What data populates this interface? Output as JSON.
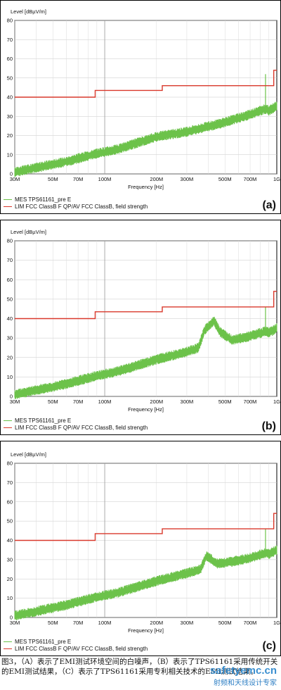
{
  "chart_data": [
    {
      "type": "line",
      "panel_label": "(a)",
      "ylabel": "Level [dBµV/m]",
      "xlabel": "Frequency [Hz]",
      "x_scale": "log",
      "xlim": [
        30000000,
        1000000000
      ],
      "ylim": [
        0,
        80
      ],
      "y_ticks": [
        0,
        10,
        20,
        30,
        40,
        50,
        60,
        70,
        80
      ],
      "x_tick_labels": [
        "30M",
        "50M",
        "70M",
        "100M",
        "200M",
        "300M",
        "500M",
        "700M",
        "1G"
      ],
      "x_tick_values": [
        30000000,
        50000000,
        70000000,
        100000000,
        200000000,
        300000000,
        500000000,
        700000000,
        1000000000
      ],
      "grid": true,
      "series": [
        {
          "name": "MES  TPS61161_pre E",
          "color": "#6cc24a",
          "x": [
            30000000,
            60000000,
            88000000,
            120000000,
            200000000,
            300000000,
            500000000,
            700000000,
            860000000,
            900000000,
            1000000000
          ],
          "y": [
            1,
            6.5,
            10.5,
            13,
            19.5,
            22,
            27,
            31,
            34,
            33,
            35.5
          ]
        },
        {
          "name": "LIM  FCC ClassB F QP/AV    FCC ClassB, field strength",
          "color": "#d9382b",
          "x": [
            30000000,
            88000000,
            88000000,
            216000000,
            216000000,
            960000000,
            960000000,
            1000000000
          ],
          "y": [
            40,
            40,
            43.5,
            43.5,
            46,
            46,
            54,
            54
          ]
        }
      ],
      "annotations": [
        {
          "type": "spike",
          "x": 860000000,
          "y": 52
        }
      ]
    },
    {
      "type": "line",
      "panel_label": "(b)",
      "ylabel": "Level [dBµV/m]",
      "xlabel": "Frequency [Hz]",
      "x_scale": "log",
      "xlim": [
        30000000,
        1000000000
      ],
      "ylim": [
        0,
        80
      ],
      "y_ticks": [
        0,
        10,
        20,
        30,
        40,
        50,
        60,
        70,
        80
      ],
      "x_tick_labels": [
        "30M",
        "50M",
        "70M",
        "100M",
        "200M",
        "300M",
        "500M",
        "700M",
        "1G"
      ],
      "x_tick_values": [
        30000000,
        50000000,
        70000000,
        100000000,
        200000000,
        300000000,
        500000000,
        700000000,
        1000000000
      ],
      "grid": true,
      "series": [
        {
          "name": "MES  TPS61161_pre E",
          "color": "#6cc24a",
          "x": [
            30000000,
            60000000,
            88000000,
            120000000,
            200000000,
            300000000,
            350000000,
            380000000,
            430000000,
            470000000,
            550000000,
            700000000,
            860000000,
            900000000,
            1000000000
          ],
          "y": [
            1,
            6.5,
            10.5,
            13,
            19,
            23,
            25,
            34,
            39,
            33,
            29,
            31,
            33.5,
            33,
            35
          ]
        },
        {
          "name": "LIM  FCC ClassB F QP/AV    FCC ClassB, field strength",
          "color": "#d9382b",
          "x": [
            30000000,
            88000000,
            88000000,
            216000000,
            216000000,
            960000000,
            960000000,
            1000000000
          ],
          "y": [
            40,
            40,
            43.5,
            43.5,
            46,
            46,
            54,
            54
          ]
        }
      ],
      "annotations": [
        {
          "type": "spike",
          "x": 860000000,
          "y": 46
        }
      ]
    },
    {
      "type": "line",
      "panel_label": "(c)",
      "ylabel": "Level [dBµV/m]",
      "xlabel": "Frequency [Hz]",
      "x_scale": "log",
      "xlim": [
        30000000,
        1000000000
      ],
      "ylim": [
        0,
        80
      ],
      "y_ticks": [
        0,
        10,
        20,
        30,
        40,
        50,
        60,
        70,
        80
      ],
      "x_tick_labels": [
        "30M",
        "50M",
        "70M",
        "100M",
        "200M",
        "300M",
        "500M",
        "700M",
        "1G"
      ],
      "x_tick_values": [
        30000000,
        50000000,
        70000000,
        100000000,
        200000000,
        300000000,
        500000000,
        700000000,
        1000000000
      ],
      "grid": true,
      "series": [
        {
          "name": "MES  TPS61161_pre E",
          "color": "#6cc24a",
          "x": [
            30000000,
            60000000,
            88000000,
            120000000,
            200000000,
            300000000,
            360000000,
            390000000,
            420000000,
            450000000,
            550000000,
            700000000,
            860000000,
            900000000,
            1000000000
          ],
          "y": [
            1,
            6.5,
            10.5,
            13,
            19,
            23,
            25,
            32,
            30,
            28,
            29,
            31,
            33.5,
            33,
            35
          ]
        },
        {
          "name": "LIM  FCC ClassB F QP/AV    FCC ClassB, field strength",
          "color": "#d9382b",
          "x": [
            30000000,
            88000000,
            88000000,
            216000000,
            216000000,
            960000000,
            960000000,
            1000000000
          ],
          "y": [
            40,
            40,
            43.5,
            43.5,
            46,
            46,
            54,
            54
          ]
        }
      ],
      "annotations": [
        {
          "type": "spike",
          "x": 860000000,
          "y": 46
        }
      ]
    }
  ],
  "caption": "图3，（A）表示了EMI测试环境空间的白噪声，（B）表示了TPS61161采用传统开关的EMI测试结果，（C）表示了TPS61161采用专利相关技术的EMI测试结果。",
  "watermark": {
    "url": "safetyemc.cn",
    "sub": "射频和天线设计专家"
  }
}
